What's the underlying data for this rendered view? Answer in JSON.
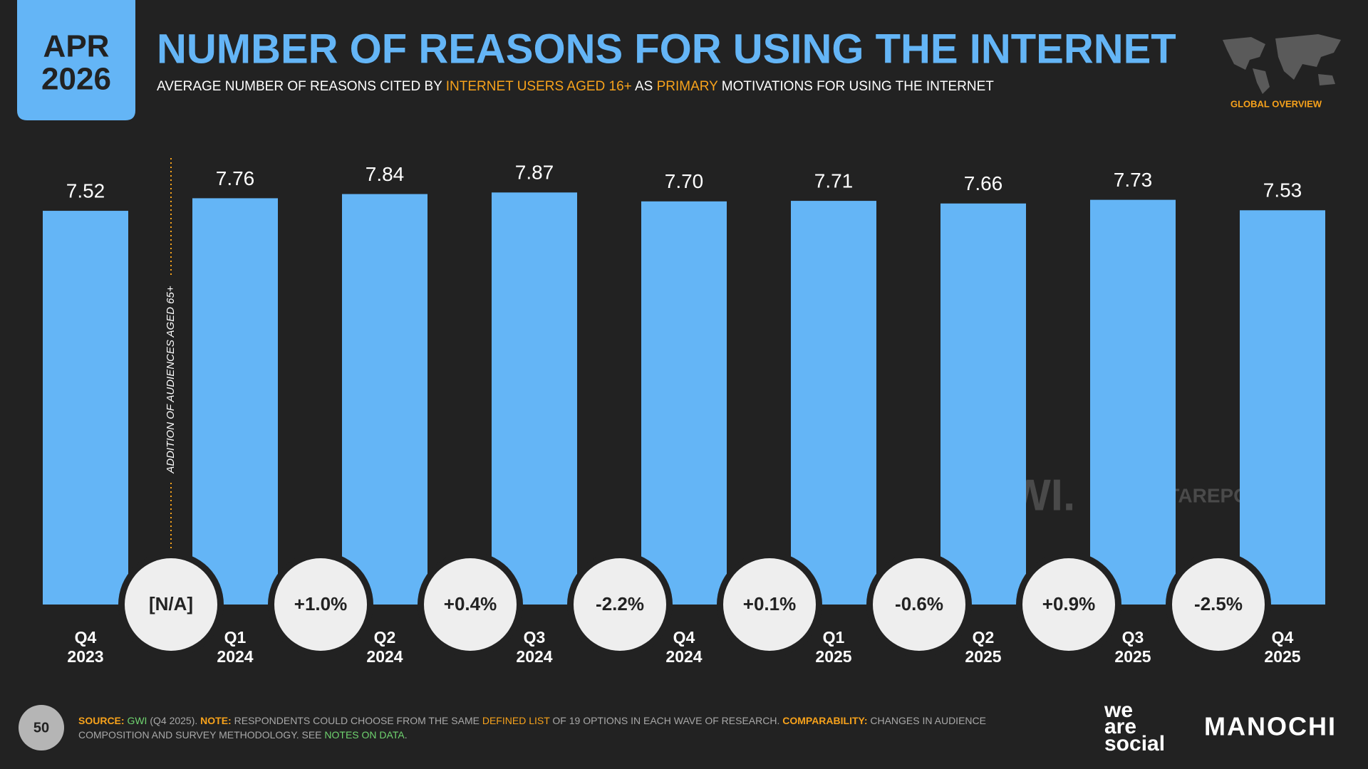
{
  "header": {
    "badge": [
      "APR",
      "2026"
    ],
    "title": "NUMBER OF REASONS FOR USING THE INTERNET",
    "subtitle": [
      "AVERAGE NUMBER OF REASONS CITED BY ",
      "INTERNET USERS AGED 16+",
      " AS ",
      "PRIMARY",
      " MOTIVATIONS FOR USING THE INTERNET"
    ],
    "region": "GLOBAL OVERVIEW"
  },
  "chart_data": {
    "type": "bar",
    "categories": [
      "Q4 2023",
      "Q1 2024",
      "Q2 2024",
      "Q3 2024",
      "Q4 2024",
      "Q1 2025",
      "Q2 2025",
      "Q3 2025",
      "Q4 2025"
    ],
    "values": [
      7.52,
      7.76,
      7.84,
      7.87,
      7.7,
      7.71,
      7.66,
      7.73,
      7.53
    ],
    "value_labels": [
      "7.52",
      "7.76",
      "7.84",
      "7.87",
      "7.70",
      "7.71",
      "7.66",
      "7.73",
      "7.53"
    ],
    "color": "#64b5f6",
    "ylim": [
      0,
      8.5
    ],
    "changes": {
      "values": [
        null,
        1.0,
        0.4,
        -2.2,
        0.1,
        -0.6,
        0.9,
        -2.5
      ],
      "value_labels": [
        "[N/A]",
        "+1.0%",
        "+0.4%",
        "-2.2%",
        "+0.1%",
        "-0.6%",
        "+0.9%",
        "-2.5%"
      ]
    },
    "annotation": "ADDITION OF AUDIENCES AGED 65+"
  },
  "watermarks": [
    "GWI.",
    "DATAREPORTAL"
  ],
  "footer": {
    "page": "50",
    "source": [
      "SOURCE:",
      "GWI",
      "(Q4 2025).",
      "NOTE:",
      "RESPONDENTS COULD CHOOSE FROM THE SAME",
      "DEFINED LIST",
      "OF 19 OPTIONS IN EACH WAVE OF RESEARCH.",
      "COMPARABILITY:",
      "CHANGES IN AUDIENCE COMPOSITION AND SURVEY METHODOLOGY. SEE",
      "NOTES ON DATA",
      "."
    ],
    "logos": [
      "we",
      "are",
      "social",
      "MANOCHI"
    ]
  }
}
